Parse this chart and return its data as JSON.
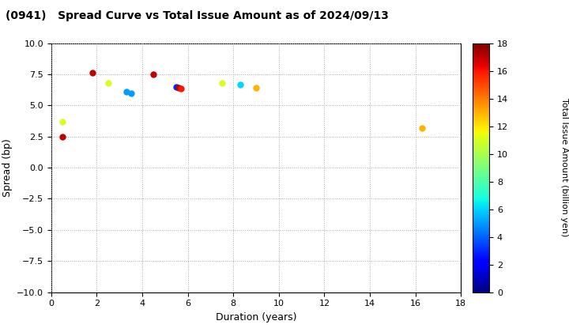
{
  "title": "(0941)   Spread Curve vs Total Issue Amount as of 2024/09/13",
  "xlabel": "Duration (years)",
  "ylabel": "Spread (bp)",
  "colorbar_label": "Total Issue Amount (billion yen)",
  "xlim": [
    0,
    18
  ],
  "ylim": [
    -10,
    10
  ],
  "xticks": [
    0,
    2,
    4,
    6,
    8,
    10,
    12,
    14,
    16,
    18
  ],
  "yticks": [
    -10.0,
    -7.5,
    -5.0,
    -2.5,
    0.0,
    2.5,
    5.0,
    7.5,
    10.0
  ],
  "colorbar_min": 0,
  "colorbar_max": 18,
  "points": [
    {
      "duration": 0.5,
      "spread": 2.5,
      "amount": 17
    },
    {
      "duration": 0.5,
      "spread": 3.7,
      "amount": 11
    },
    {
      "duration": 1.8,
      "spread": 7.6,
      "amount": 17
    },
    {
      "duration": 2.5,
      "spread": 6.8,
      "amount": 11
    },
    {
      "duration": 3.3,
      "spread": 6.1,
      "amount": 5
    },
    {
      "duration": 3.5,
      "spread": 6.0,
      "amount": 5
    },
    {
      "duration": 4.5,
      "spread": 7.5,
      "amount": 17
    },
    {
      "duration": 5.5,
      "spread": 6.5,
      "amount": 3
    },
    {
      "duration": 5.6,
      "spread": 6.4,
      "amount": 17
    },
    {
      "duration": 5.7,
      "spread": 6.35,
      "amount": 16
    },
    {
      "duration": 7.5,
      "spread": 6.8,
      "amount": 11
    },
    {
      "duration": 8.3,
      "spread": 6.7,
      "amount": 6
    },
    {
      "duration": 9.0,
      "spread": 6.4,
      "amount": 13
    },
    {
      "duration": 16.3,
      "spread": 3.2,
      "amount": 13
    }
  ],
  "background_color": "#ffffff",
  "grid_color": "#aaaaaa",
  "marker_size": 25,
  "colormap": "jet"
}
